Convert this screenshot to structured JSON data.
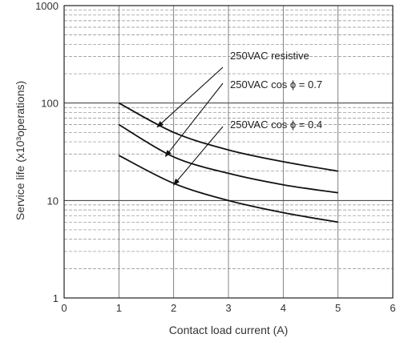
{
  "chart_data": {
    "type": "line",
    "xlabel": "Contact load current (A)",
    "ylabel": "Service life (x10³operations)",
    "xlim": [
      0,
      6
    ],
    "ylim": [
      1,
      1000
    ],
    "y_scale": "log",
    "x_ticks": [
      "0",
      "1",
      "2",
      "3",
      "4",
      "5",
      "6"
    ],
    "y_ticks": [
      "1",
      "10",
      "100",
      "1000"
    ],
    "grid": true,
    "series": [
      {
        "name": "250VAC resistive",
        "x": [
          1,
          2,
          3,
          4,
          5
        ],
        "y": [
          100,
          50,
          33,
          25,
          20
        ]
      },
      {
        "name": "250VAC cos ϕ = 0.7",
        "x": [
          1,
          2,
          3,
          4,
          5
        ],
        "y": [
          60,
          28,
          19,
          14.5,
          12
        ]
      },
      {
        "name": "250VAC cos ϕ = 0.4",
        "x": [
          1,
          2,
          3,
          4,
          5
        ],
        "y": [
          29,
          15,
          10,
          7.5,
          6
        ]
      }
    ],
    "annotations": [
      {
        "text": "250VAC resistive",
        "series": 0
      },
      {
        "text": "250VAC cos ϕ = 0.7",
        "series": 1
      },
      {
        "text": "250VAC cos ϕ = 0.4",
        "series": 2
      }
    ]
  }
}
